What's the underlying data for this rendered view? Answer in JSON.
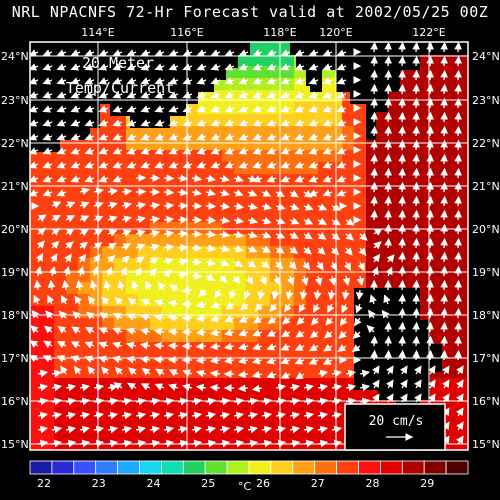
{
  "title": "NRL NPACNFS 72-Hr Forecast valid at 2002/05/25 00Z",
  "panel_label_line1": "20 Meter",
  "panel_label_line2": "Temp/Current",
  "scale_label": "20 cm/s",
  "lon_ticks": [
    "114°E",
    "116°E",
    "118°E",
    "120°E",
    "122°E"
  ],
  "lat_ticks_left": [
    "24°N",
    "23°N",
    "22°N",
    "21°N",
    "20°N",
    "19°N",
    "18°N",
    "17°N",
    "16°N",
    "15°N"
  ],
  "lat_ticks_right": [
    "24°N",
    "23°N",
    "22°N",
    "21°N",
    "20°N",
    "19°N",
    "18°N",
    "17°N",
    "16°N",
    "15°N"
  ],
  "colorbar": {
    "labels": [
      "22",
      "23",
      "24",
      "25",
      "26",
      "27",
      "28",
      "29"
    ],
    "unit": "°C",
    "colors": [
      "#1a1aa6",
      "#2a2ad4",
      "#3a50ff",
      "#2f7dff",
      "#1ea8ff",
      "#18d6f0",
      "#10e0b0",
      "#20d060",
      "#60e030",
      "#b0f020",
      "#f0f020",
      "#ffd020",
      "#ffa018",
      "#ff7010",
      "#ff4010",
      "#ff1010",
      "#e00000",
      "#b00000",
      "#800000",
      "#500000"
    ]
  },
  "colors": {
    "land": "#000000",
    "grid": "#ffffff",
    "vectors": "#ffffff"
  }
}
